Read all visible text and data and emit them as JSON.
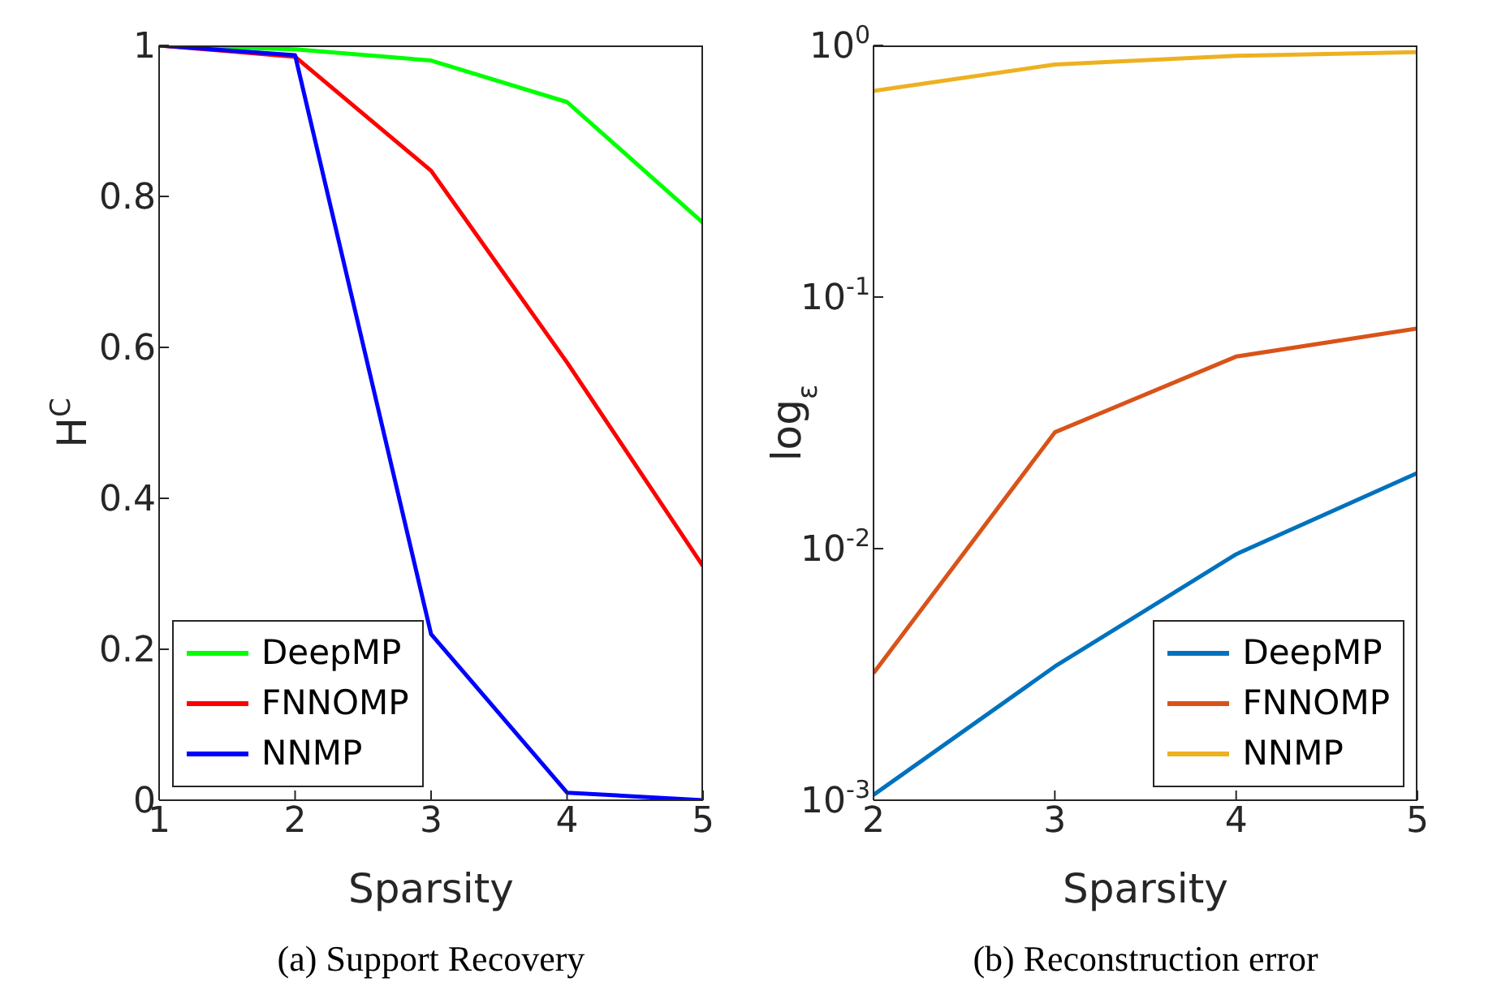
{
  "chart_data": [
    {
      "type": "line",
      "xlabel": "Sparsity",
      "ylabel": "H$^{C}$",
      "x": [
        1,
        2,
        3,
        4,
        5
      ],
      "xlim": [
        1,
        5
      ],
      "xticks": [
        1,
        2,
        3,
        4,
        5
      ],
      "ylim": [
        0,
        1
      ],
      "yticks": [
        0,
        0.2,
        0.4,
        0.6,
        0.8,
        1
      ],
      "grid": false,
      "legend": "bottom left",
      "marker": "none",
      "line_style": "solid",
      "annotations": [
        "(a) Support Recovery"
      ],
      "series": [
        {
          "name": "DeepMP",
          "color": "#00ff00",
          "values": [
            1,
            0.995,
            0.98,
            0.925,
            0.765
          ]
        },
        {
          "name": "FNNOMP",
          "color": "#ff0000",
          "values": [
            1,
            0.985,
            0.834,
            0.58,
            0.31
          ]
        },
        {
          "name": "NNMP",
          "color": "#0000ff",
          "values": [
            1,
            0.987,
            0.22,
            0.01,
            0.0
          ]
        }
      ]
    },
    {
      "type": "line",
      "xlabel": "Sparsity",
      "ylabel": "log$_{ε}$",
      "log": "y",
      "x": [
        2,
        3,
        4,
        5
      ],
      "xlim": [
        2,
        5
      ],
      "xticks": [
        2,
        3,
        4,
        5
      ],
      "ylim": [
        0.001,
        1
      ],
      "yticks": [
        {
          "value": 0.001,
          "label": "10$^{-3}$"
        },
        {
          "value": 0.01,
          "label": "10$^{-2}$"
        },
        {
          "value": 0.1,
          "label": "10$^{-1}$"
        },
        {
          "value": 1,
          "label": "10$^{0}$"
        }
      ],
      "grid": false,
      "legend": "bottom right",
      "marker": "none",
      "line_style": "solid",
      "annotations": [
        "(b) Reconstruction error"
      ],
      "series": [
        {
          "name": "DeepMP",
          "color": "#0072bd",
          "values": [
            0.00105,
            0.0034,
            0.0095,
            0.02
          ]
        },
        {
          "name": "FNNOMP",
          "color": "#d95319",
          "values": [
            0.0032,
            0.029,
            0.058,
            0.075
          ]
        },
        {
          "name": "NNMP",
          "color": "#edb120",
          "values": [
            0.66,
            0.84,
            0.91,
            0.94
          ]
        }
      ]
    }
  ]
}
